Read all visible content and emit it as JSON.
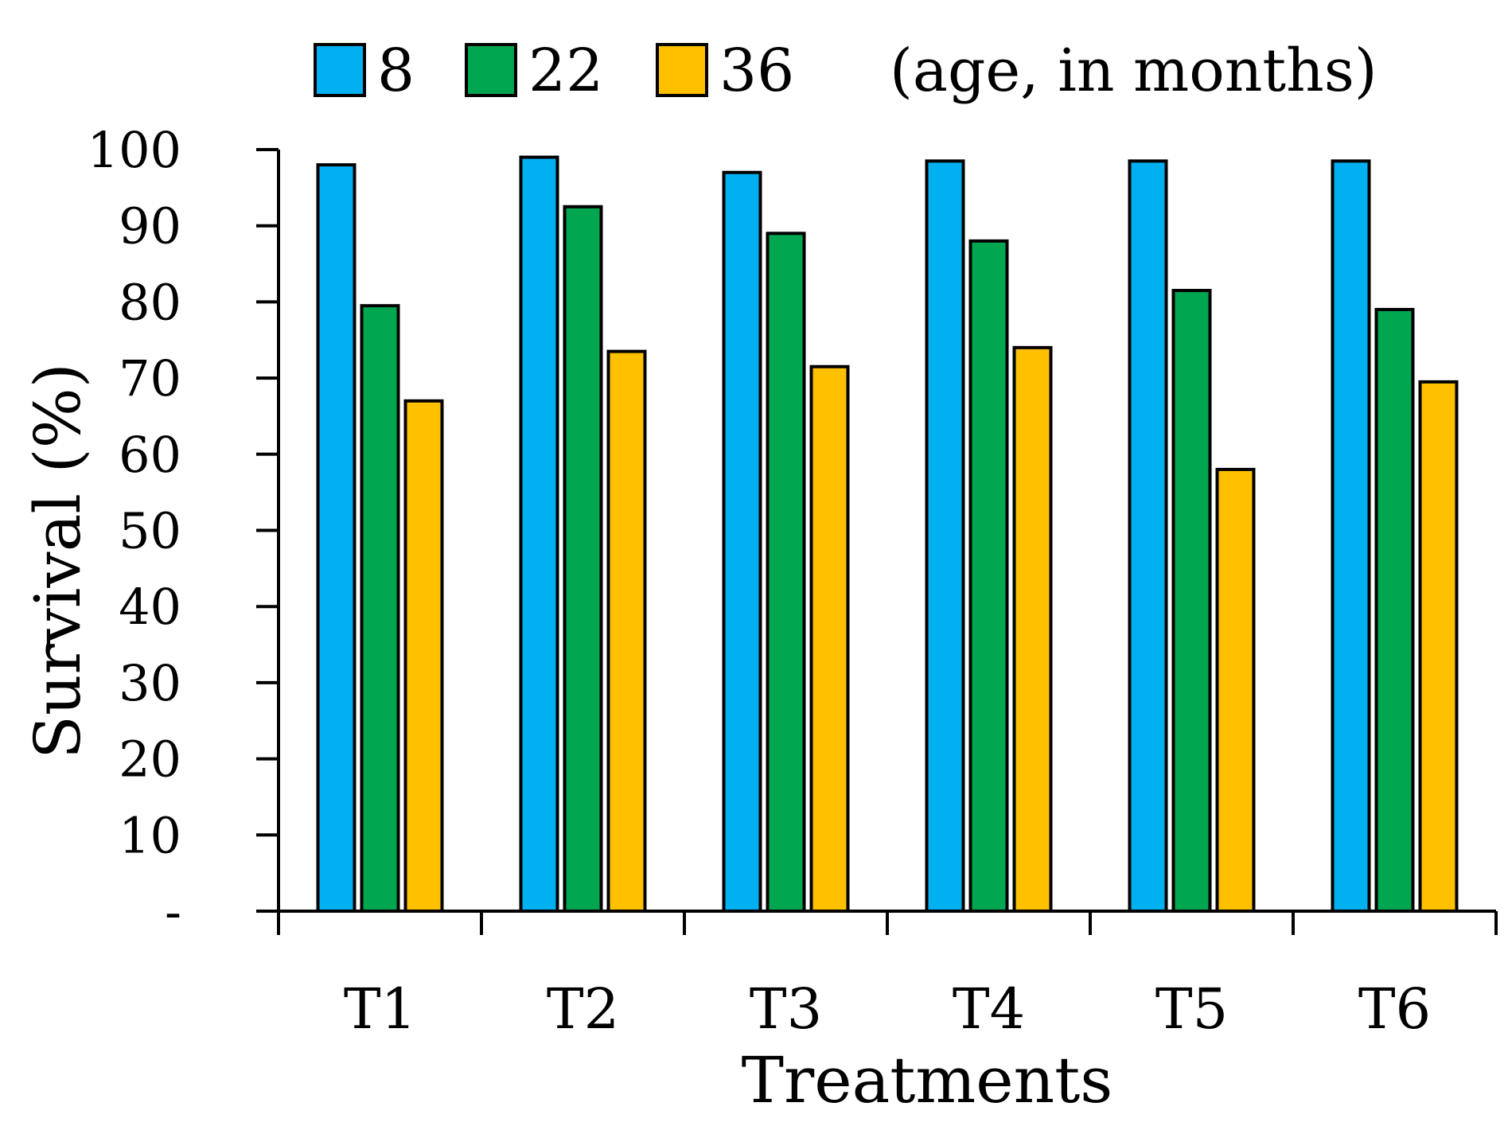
{
  "chart_data": {
    "type": "bar",
    "title": "",
    "xlabel": "Treatments",
    "ylabel": "Survival (%)",
    "ylim": [
      0,
      100
    ],
    "yticks": [
      0,
      10,
      20,
      30,
      40,
      50,
      60,
      70,
      80,
      90,
      100
    ],
    "ytick_labels": [
      "-",
      "10",
      "20",
      "30",
      "40",
      "50",
      "60",
      "70",
      "80",
      "90",
      "100"
    ],
    "categories": [
      "T1",
      "T2",
      "T3",
      "T4",
      "T5",
      "T6"
    ],
    "legend_note": "(age, in months)",
    "legend_position": "top",
    "grid": false,
    "series": [
      {
        "name": "8",
        "color": "#00b0f0",
        "values": [
          98.0,
          99.0,
          97.0,
          98.5,
          98.5,
          98.5
        ]
      },
      {
        "name": "22",
        "color": "#00a650",
        "values": [
          79.5,
          92.5,
          89.0,
          88.0,
          81.5,
          79.0
        ]
      },
      {
        "name": "36",
        "color": "#ffc000",
        "values": [
          67.0,
          73.5,
          71.5,
          74.0,
          58.0,
          69.5
        ]
      }
    ]
  }
}
